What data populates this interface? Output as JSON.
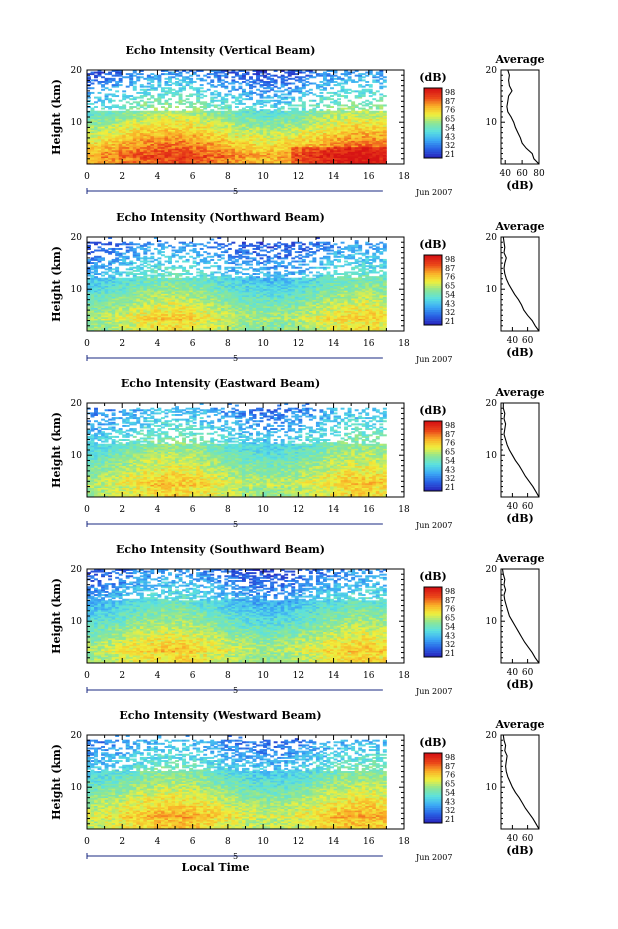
{
  "chart_data": [
    {
      "type": "heatmap",
      "title": "Echo Intensity (Vertical Beam)",
      "ylabel": "Height (km)",
      "xlim": [
        0,
        18
      ],
      "ylim": [
        2,
        20
      ],
      "x_ticks": [
        "0",
        "2",
        "4",
        "6",
        "8",
        "10",
        "12",
        "14",
        "16",
        "18"
      ],
      "y_ticks": [
        "20",
        "10"
      ],
      "date_label": "Jun 2007",
      "day_label": "5",
      "data_extent_hours": 16.8,
      "colorbar": {
        "unit": "(dB)",
        "ticks": [
          "98",
          "87",
          "76",
          "65",
          "54",
          "43",
          "32",
          "21"
        ]
      },
      "pattern": {
        "clear_top": 17,
        "gaps_top": 12,
        "sparse_top": 20,
        "strong_at": 3,
        "peak": 0.85,
        "contrast": 0.6,
        "gap_density": 0.25,
        "mask_mid": []
      },
      "profile": {
        "title": "Average",
        "xlabel": "(dB)",
        "xlim": [
          35,
          80
        ],
        "x_ticks": [
          "40",
          "60",
          "80"
        ],
        "heights": [
          2,
          3,
          4,
          5,
          6,
          7,
          8,
          9,
          10,
          11,
          12,
          13,
          14,
          15,
          16,
          17,
          18,
          19,
          20
        ],
        "values": [
          80,
          74,
          72,
          65,
          60,
          58,
          55,
          52,
          50,
          47,
          43,
          42,
          43,
          44,
          48,
          45,
          44,
          45,
          43
        ]
      }
    },
    {
      "type": "heatmap",
      "title": "Echo Intensity (Northward Beam)",
      "ylabel": "Height (km)",
      "xlim": [
        0,
        18
      ],
      "ylim": [
        2,
        20
      ],
      "x_ticks": [
        "0",
        "2",
        "4",
        "6",
        "8",
        "10",
        "12",
        "14",
        "16",
        "18"
      ],
      "y_ticks": [
        "20",
        "10"
      ],
      "date_label": "Jun 2007",
      "day_label": "5",
      "data_extent_hours": 16.8,
      "colorbar": {
        "unit": "(dB)",
        "ticks": [
          "98",
          "87",
          "76",
          "65",
          "54",
          "43",
          "32",
          "21"
        ]
      },
      "pattern": {
        "clear_top": 12,
        "gaps_top": 16,
        "sparse_top": 19,
        "strong_at": 4,
        "peak": 0.62,
        "contrast": 0.45,
        "gap_density": 0.45,
        "mask_mid": [
          13,
          15
        ]
      },
      "profile": {
        "title": "Average",
        "xlabel": "(dB)",
        "xlim": [
          25,
          75
        ],
        "x_ticks": [
          "40",
          "60"
        ],
        "heights": [
          2,
          3,
          4,
          5,
          6,
          7,
          8,
          9,
          10,
          11,
          12,
          13,
          14,
          15,
          16,
          17,
          18,
          19,
          20
        ],
        "values": [
          75,
          70,
          66,
          60,
          55,
          52,
          48,
          43,
          39,
          35,
          32,
          30,
          29,
          30,
          32,
          29,
          30,
          29,
          28
        ]
      }
    },
    {
      "type": "heatmap",
      "title": "Echo Intensity (Eastward Beam)",
      "ylabel": "Height (km)",
      "xlim": [
        0,
        18
      ],
      "ylim": [
        2,
        20
      ],
      "x_ticks": [
        "0",
        "2",
        "4",
        "6",
        "8",
        "10",
        "12",
        "14",
        "16",
        "18"
      ],
      "y_ticks": [
        "20",
        "10"
      ],
      "date_label": "Jun 2007",
      "day_label": "5",
      "data_extent_hours": 16.8,
      "colorbar": {
        "unit": "(dB)",
        "ticks": [
          "98",
          "87",
          "76",
          "65",
          "54",
          "43",
          "32",
          "21"
        ]
      },
      "pattern": {
        "clear_top": 12,
        "gaps_top": 15,
        "sparse_top": 19,
        "strong_at": 4,
        "peak": 0.64,
        "contrast": 0.4,
        "gap_density": 0.45,
        "mask_mid": [
          13,
          16
        ]
      },
      "profile": {
        "title": "Average",
        "xlabel": "(dB)",
        "xlim": [
          25,
          75
        ],
        "x_ticks": [
          "40",
          "60"
        ],
        "heights": [
          2,
          3,
          4,
          5,
          6,
          7,
          8,
          9,
          10,
          11,
          12,
          13,
          14,
          15,
          16,
          17,
          18,
          19,
          20
        ],
        "values": [
          75,
          71,
          67,
          62,
          57,
          53,
          49,
          44,
          40,
          36,
          33,
          31,
          29,
          30,
          31,
          29,
          30,
          28,
          28
        ]
      }
    },
    {
      "type": "heatmap",
      "title": "Echo Intensity (Southward Beam)",
      "ylabel": "Height (km)",
      "xlim": [
        0,
        18
      ],
      "ylim": [
        2,
        20
      ],
      "x_ticks": [
        "0",
        "2",
        "4",
        "6",
        "8",
        "10",
        "12",
        "14",
        "16",
        "18"
      ],
      "y_ticks": [
        "20",
        "10"
      ],
      "date_label": "Jun 2007",
      "day_label": "5",
      "data_extent_hours": 16.8,
      "colorbar": {
        "unit": "(dB)",
        "ticks": [
          "98",
          "87",
          "76",
          "65",
          "54",
          "43",
          "32",
          "21"
        ]
      },
      "pattern": {
        "clear_top": 14,
        "gaps_top": 17,
        "sparse_top": 20,
        "strong_at": 4,
        "peak": 0.64,
        "contrast": 0.45,
        "gap_density": 0.38,
        "mask_mid": []
      },
      "profile": {
        "title": "Average",
        "xlabel": "(dB)",
        "xlim": [
          25,
          75
        ],
        "x_ticks": [
          "40",
          "60"
        ],
        "heights": [
          2,
          3,
          4,
          5,
          6,
          7,
          8,
          9,
          10,
          11,
          12,
          13,
          14,
          15,
          16,
          17,
          18,
          19,
          20
        ],
        "values": [
          75,
          70,
          66,
          61,
          56,
          52,
          48,
          44,
          40,
          36,
          34,
          32,
          30,
          29,
          31,
          29,
          30,
          28,
          27
        ]
      }
    },
    {
      "type": "heatmap",
      "title": "Echo Intensity (Westward Beam)",
      "ylabel": "Height (km)",
      "xlim": [
        0,
        18
      ],
      "ylim": [
        2,
        20
      ],
      "x_ticks": [
        "0",
        "2",
        "4",
        "6",
        "8",
        "10",
        "12",
        "14",
        "16",
        "18"
      ],
      "y_ticks": [
        "20",
        "10"
      ],
      "date_label": "Jun 2007",
      "day_label": "5",
      "xlabel": "Local Time",
      "data_extent_hours": 16.8,
      "colorbar": {
        "unit": "(dB)",
        "ticks": [
          "98",
          "87",
          "76",
          "65",
          "54",
          "43",
          "32",
          "21"
        ]
      },
      "pattern": {
        "clear_top": 13,
        "gaps_top": 16,
        "sparse_top": 19,
        "strong_at": 4,
        "peak": 0.68,
        "contrast": 0.45,
        "gap_density": 0.4,
        "mask_mid": []
      },
      "profile": {
        "title": "Average",
        "xlabel": "(dB)",
        "xlim": [
          25,
          75
        ],
        "x_ticks": [
          "40",
          "60"
        ],
        "heights": [
          2,
          3,
          4,
          5,
          6,
          7,
          8,
          9,
          10,
          11,
          12,
          13,
          14,
          15,
          16,
          17,
          18,
          19,
          20
        ],
        "values": [
          75,
          71,
          67,
          62,
          57,
          53,
          49,
          44,
          40,
          37,
          34,
          32,
          31,
          32,
          33,
          30,
          31,
          29,
          28
        ]
      }
    }
  ]
}
